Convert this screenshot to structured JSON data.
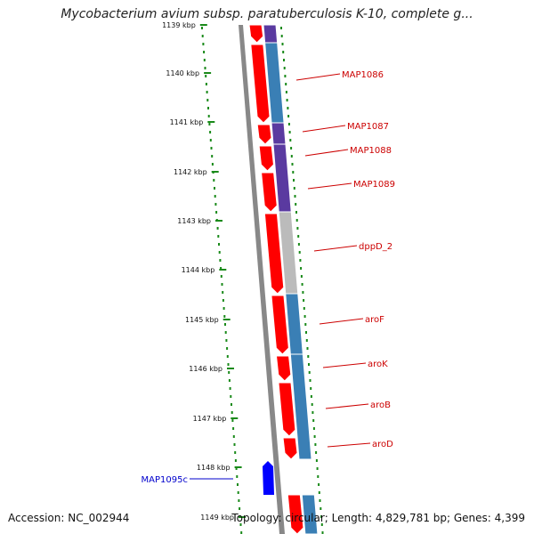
{
  "title": "Mycobacterium avium subsp. paratuberculosis K-10, complete g...",
  "colors": {
    "dots": "#1a8a1a",
    "forward_gene": "#ff0000",
    "reverse_gene": "#0000ff",
    "cds_blue": "#3a7fb5",
    "cds_purple": "#5a3aa0",
    "cds_gray": "#bbbbbb",
    "label_red": "#cc0000",
    "label_blue": "#0000cc",
    "backbone": "#888888"
  },
  "ticks": [
    {
      "label": "1139 kbp"
    },
    {
      "label": "1140 kbp"
    },
    {
      "label": "1141 kbp"
    },
    {
      "label": "1142 kbp"
    },
    {
      "label": "1143 kbp"
    },
    {
      "label": "1144 kbp"
    },
    {
      "label": "1145 kbp"
    },
    {
      "label": "1146 kbp"
    },
    {
      "label": "1147 kbp"
    },
    {
      "label": "1148 kbp"
    },
    {
      "label": "1149 kbp"
    }
  ],
  "gene_labels": [
    {
      "name": "MAP1086",
      "color": "red"
    },
    {
      "name": "MAP1087",
      "color": "red"
    },
    {
      "name": "MAP1088",
      "color": "red"
    },
    {
      "name": "MAP1089",
      "color": "red"
    },
    {
      "name": "dppD_2",
      "color": "red"
    },
    {
      "name": "aroF",
      "color": "red"
    },
    {
      "name": "aroK",
      "color": "red"
    },
    {
      "name": "aroB",
      "color": "red"
    },
    {
      "name": "aroD",
      "color": "red"
    },
    {
      "name": "MAP1095c",
      "color": "blue"
    }
  ],
  "footer": {
    "accession": "Accession: NC_002944",
    "topology": "Topology: circular; Length: 4,829,781 bp; Genes: 4,399"
  }
}
